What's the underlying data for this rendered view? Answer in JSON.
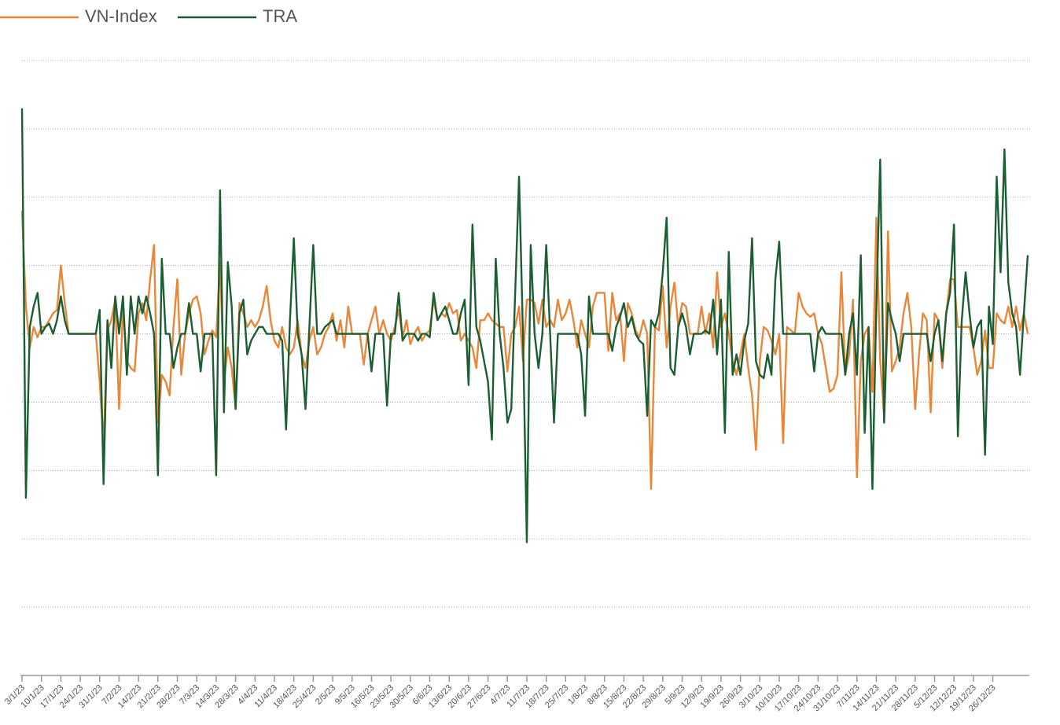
{
  "chart_data": {
    "type": "line",
    "categories": [
      "3/1/23",
      null,
      null,
      null,
      null,
      "10/1/23",
      null,
      null,
      null,
      null,
      "17/1/23",
      null,
      null,
      null,
      null,
      "24/1/23",
      null,
      null,
      null,
      null,
      "31/1/23",
      null,
      null,
      null,
      null,
      "7/2/23",
      null,
      null,
      null,
      null,
      "14/2/23",
      null,
      null,
      null,
      null,
      "21/2/23",
      null,
      null,
      null,
      null,
      "28/2/23",
      null,
      null,
      null,
      null,
      "7/3/23",
      null,
      null,
      null,
      null,
      "14/3/23",
      null,
      null,
      null,
      null,
      "28/3/23",
      null,
      null,
      null,
      null,
      "4/4/23",
      null,
      null,
      null,
      null,
      "11/4/23",
      null,
      null,
      null,
      null,
      "18/4/23",
      null,
      null,
      null,
      null,
      "25/4/23",
      null,
      null,
      null,
      null,
      "2/5/23",
      null,
      null,
      null,
      null,
      "9/5/23",
      null,
      null,
      null,
      null,
      "16/5/23",
      null,
      null,
      null,
      null,
      "23/5/23",
      null,
      null,
      null,
      null,
      "30/5/23",
      null,
      null,
      null,
      null,
      "6/6/23",
      null,
      null,
      null,
      null,
      "13/6/23",
      null,
      null,
      null,
      null,
      "20/6/23",
      null,
      null,
      null,
      null,
      "27/6/23",
      null,
      null,
      null,
      null,
      "4/7/23",
      null,
      null,
      null,
      null,
      "11/7/23",
      null,
      null,
      null,
      null,
      "18/7/23",
      null,
      null,
      null,
      null,
      "25/7/23",
      null,
      null,
      null,
      null,
      "1/8/23",
      null,
      null,
      null,
      null,
      "8/8/23",
      null,
      null,
      null,
      null,
      "15/8/23",
      null,
      null,
      null,
      null,
      "22/8/23",
      null,
      null,
      null,
      null,
      "29/8/23",
      null,
      null,
      null,
      null,
      "5/9/23",
      null,
      null,
      null,
      null,
      "12/9/23",
      null,
      null,
      null,
      null,
      "19/9/23",
      null,
      null,
      null,
      null,
      "26/9/23",
      null,
      null,
      null,
      null,
      "3/10/23",
      null,
      null,
      null,
      null,
      "10/10/23",
      null,
      null,
      null,
      null,
      "17/10/23",
      null,
      null,
      null,
      null,
      "24/10/23",
      null,
      null,
      null,
      null,
      "31/10/23",
      null,
      null,
      null,
      null,
      "7/11/23",
      null,
      null,
      null,
      null,
      "14/11/23",
      null,
      null,
      null,
      null,
      "21/11/23",
      null,
      null,
      null,
      null,
      "28/11/23",
      null,
      null,
      null,
      null,
      "5/12/23",
      null,
      null,
      null,
      null,
      "12/12/23",
      null,
      null,
      null,
      null,
      "19/12/23",
      null,
      null,
      null,
      null,
      "26/12/23",
      null,
      null,
      null,
      null,
      null,
      null,
      null,
      null,
      null
    ],
    "series": [
      {
        "name": "VN-Index",
        "color": "#e8873a",
        "values": [
          1.8,
          0.4,
          -0.2,
          0.1,
          -0.05,
          0.1,
          0.1,
          0.2,
          0.3,
          0.35,
          1.0,
          0.45,
          0,
          0,
          0,
          0,
          0,
          0,
          0,
          0,
          -0.7,
          -1.6,
          0.05,
          0.2,
          0.5,
          -1.1,
          0.4,
          -0.4,
          -0.5,
          -0.55,
          0.3,
          0.45,
          0.2,
          0.8,
          1.3,
          -1.3,
          -0.6,
          -0.7,
          -0.9,
          0.1,
          0.8,
          -0.6,
          0,
          0.3,
          0.5,
          0.55,
          0.3,
          -0.3,
          -0.1,
          0.05,
          -0.05,
          1.05,
          -0.7,
          -0.2,
          -0.5,
          -1.1,
          0.45,
          0.3,
          0.1,
          0.2,
          0.1,
          0.2,
          0.4,
          0.7,
          0.2,
          -0.1,
          -0.2,
          0.1,
          -0.2,
          -0.3,
          -0.2,
          0.2,
          -0.3,
          -0.5,
          -0.1,
          0.1,
          -0.3,
          -0.2,
          0,
          0.1,
          0.3,
          -0.1,
          0.2,
          -0.2,
          0.4,
          0,
          0,
          0,
          -0.45,
          0,
          0.2,
          0.4,
          0,
          0.2,
          0,
          -0.1,
          0.1,
          0.35,
          -0.05,
          0.2,
          -0.15,
          0,
          0.1,
          -0.1,
          0,
          0.05,
          0.5,
          0.2,
          0.3,
          0.25,
          0.45,
          0.3,
          0.35,
          -0.1,
          0,
          -0.1,
          -0.2,
          -0.5,
          0.2,
          0.2,
          0.3,
          0.2,
          0.15,
          0.1,
          0.1,
          -0.55,
          0,
          0.1,
          0.4,
          -0.4,
          0.5,
          0.5,
          0.45,
          0.15,
          0.5,
          0.1,
          0.2,
          0.1,
          0.5,
          0.2,
          0.3,
          0.5,
          0.2,
          -0.2,
          0.2,
          0,
          -0.2,
          0.4,
          0.6,
          0.6,
          0.6,
          -0.25,
          0.6,
          0.2,
          0.3,
          -0.4,
          0.45,
          0.3,
          0.05,
          -0.05,
          0.2,
          0,
          -2.27,
          0.1,
          0.05,
          0.7,
          -0.2,
          0.4,
          0.75,
          0.1,
          0.45,
          0.4,
          0,
          0,
          0,
          0.4,
          0,
          0.3,
          -0.2,
          0.9,
          0.1,
          0.3,
          0,
          -0.4,
          -0.6,
          -0.3,
          0,
          -0.5,
          -0.9,
          -1.7,
          -0.4,
          0.1,
          0.05,
          -0.1,
          -0.3,
          0,
          -1.6,
          0.1,
          0.05,
          0,
          0.6,
          0.4,
          0.3,
          0.25,
          0.3,
          0,
          -0.15,
          -0.5,
          -0.85,
          -0.8,
          -0.6,
          0.9,
          -0.6,
          -0.3,
          0.5,
          -2.1,
          -0.4,
          0,
          0.1,
          -0.85,
          1.7,
          -0.4,
          -1.2,
          1.5,
          -0.55,
          -0.4,
          -0.2,
          0.3,
          0.6,
          0.1,
          -1.1,
          -0.3,
          0.3,
          0.2,
          -1.15,
          0.3,
          0.2,
          -0.5,
          0.3,
          0.8,
          0.8,
          0.1,
          0.1,
          0.1,
          0.1,
          -0.2,
          -0.6,
          -0.4,
          0.05,
          -0.5,
          -0.5,
          0.3,
          0.2,
          0.15,
          0.4,
          0.1,
          0.4,
          0.05,
          0.3,
          0
        ]
      },
      {
        "name": "TRA",
        "color": "#1a5e32",
        "values": [
          3.3,
          -2.4,
          0.1,
          0.4,
          0.6,
          0,
          0.1,
          0.15,
          0,
          0.2,
          0.55,
          0.2,
          0,
          0,
          0,
          0,
          0,
          0,
          0,
          0,
          0.35,
          -2.2,
          0.2,
          -0.5,
          0.55,
          0,
          0.55,
          -0.6,
          0.55,
          0,
          0.55,
          0.3,
          0.55,
          0.3,
          0,
          -2.07,
          1.1,
          0,
          0,
          -0.5,
          -0.2,
          0,
          0,
          0.45,
          0,
          0,
          -0.55,
          0,
          0,
          0,
          -2.07,
          2.1,
          -1.15,
          1.05,
          0.4,
          -1.1,
          0.3,
          0.5,
          -0.3,
          -0.1,
          0,
          0.1,
          0.1,
          0,
          0,
          0,
          0,
          -0.1,
          -1.4,
          0.2,
          1.4,
          0,
          -0.3,
          -1.1,
          0.1,
          1.3,
          0,
          0,
          0.1,
          0.15,
          0.2,
          0,
          0,
          0,
          0,
          0,
          0,
          0,
          0,
          0,
          -0.55,
          0,
          0,
          0,
          -1.05,
          0,
          0,
          0.6,
          -0.1,
          0,
          0,
          0,
          -0.1,
          0,
          0,
          -0.05,
          0.6,
          0.2,
          0.3,
          0.4,
          0.2,
          0,
          0,
          0.3,
          0.5,
          -0.75,
          1.6,
          0.1,
          -0.1,
          -0.4,
          -0.7,
          -1.55,
          1.1,
          0,
          -0.5,
          -1.3,
          -1.1,
          0.6,
          2.3,
          0,
          -3.05,
          1.3,
          0,
          -0.5,
          0,
          1.3,
          0,
          -1.3,
          0,
          0,
          0,
          0,
          0,
          0,
          -0.3,
          -1.2,
          0.55,
          0,
          0,
          0,
          0,
          0,
          -0.25,
          0.1,
          0.25,
          0.45,
          0.1,
          0.25,
          0,
          -0.1,
          -0.15,
          -1.2,
          0.2,
          0.1,
          0.3,
          0.9,
          1.7,
          -0.5,
          -0.6,
          0.1,
          0.3,
          0.1,
          -0.3,
          0,
          0,
          0,
          0.05,
          0,
          0.5,
          -0.3,
          0.5,
          -1.45,
          1.2,
          -0.6,
          -0.3,
          -0.6,
          -0.1,
          0.15,
          1.4,
          -0.4,
          -0.6,
          -0.65,
          -0.3,
          -0.6,
          0.8,
          1.35,
          0,
          0,
          0,
          0,
          0,
          0,
          0,
          0,
          -0.55,
          0,
          0.1,
          0,
          0,
          0,
          0,
          0,
          -0.6,
          0,
          0.3,
          -0.6,
          1.15,
          -1.45,
          0.1,
          -2.27,
          0.4,
          2.55,
          -1.3,
          0.45,
          0.2,
          0,
          -0.4,
          0,
          0,
          0,
          0,
          0,
          0,
          0,
          -0.4,
          0,
          0.2,
          -0.4,
          0.3,
          0.6,
          1.6,
          -1.5,
          0.2,
          0.9,
          0.3,
          -0.2,
          0.1,
          0.2,
          -1.77,
          0.4,
          -0.15,
          2.3,
          0.9,
          2.7,
          0.75,
          0.3,
          0.1,
          -0.6,
          0.3,
          1.15
        ]
      }
    ],
    "ylim": [
      -5,
      4
    ],
    "yticks": [
      -5,
      -4,
      -3,
      -2,
      -1,
      0,
      1,
      2,
      3,
      4
    ],
    "grid": true
  }
}
